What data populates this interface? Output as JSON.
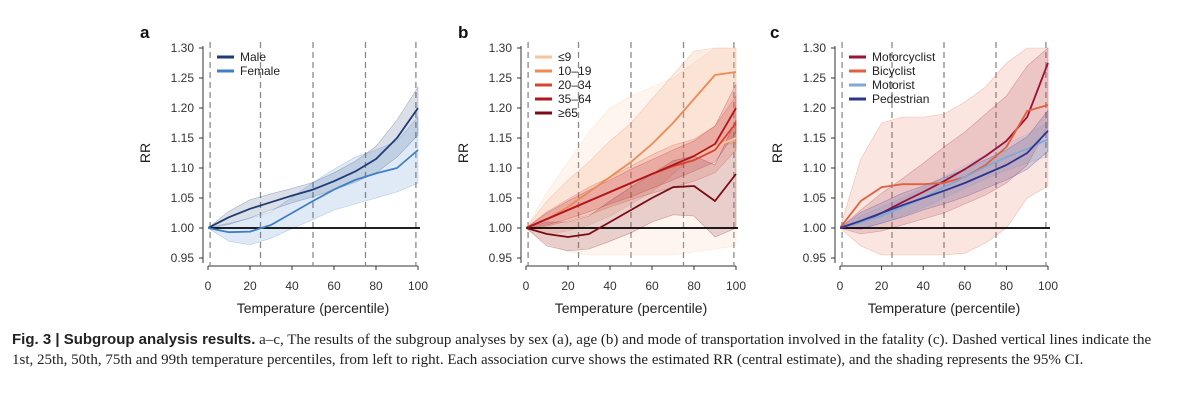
{
  "chart_data": [
    {
      "panel": "a",
      "type": "line",
      "xlabel": "Temperature (percentile)",
      "ylabel": "RR",
      "xlim": [
        0,
        100
      ],
      "ylim": [
        0.95,
        1.3
      ],
      "xticks": [
        "0",
        "20",
        "40",
        "60",
        "80",
        "100"
      ],
      "yticks": [
        "0.95",
        "1.00",
        "1.05",
        "1.10",
        "1.15",
        "1.20",
        "1.25",
        "1.30"
      ],
      "vlines": [
        1,
        25,
        50,
        75,
        99
      ],
      "legend_position": "top-left",
      "series": [
        {
          "name": "Male",
          "color": "#1f3b73",
          "x": [
            0,
            10,
            20,
            30,
            40,
            50,
            60,
            70,
            80,
            90,
            100
          ],
          "y": [
            1.0,
            1.018,
            1.032,
            1.043,
            1.054,
            1.064,
            1.078,
            1.094,
            1.115,
            1.15,
            1.2
          ],
          "lower": [
            1.0,
            1.006,
            1.017,
            1.03,
            1.042,
            1.052,
            1.064,
            1.076,
            1.092,
            1.118,
            1.155
          ],
          "upper": [
            1.0,
            1.028,
            1.047,
            1.057,
            1.066,
            1.076,
            1.092,
            1.111,
            1.136,
            1.18,
            1.235
          ]
        },
        {
          "name": "Female",
          "color": "#3f7fc4",
          "x": [
            0,
            10,
            20,
            30,
            40,
            50,
            60,
            70,
            80,
            90,
            100
          ],
          "y": [
            1.0,
            0.993,
            0.994,
            1.005,
            1.025,
            1.045,
            1.064,
            1.08,
            1.091,
            1.1,
            1.13
          ],
          "lower": [
            1.0,
            0.978,
            0.972,
            0.983,
            0.999,
            1.014,
            1.03,
            1.04,
            1.05,
            1.06,
            1.075
          ],
          "upper": [
            1.0,
            1.008,
            1.016,
            1.027,
            1.051,
            1.076,
            1.098,
            1.118,
            1.13,
            1.145,
            1.185
          ]
        }
      ]
    },
    {
      "panel": "b",
      "type": "line",
      "xlabel": "Temperature (percentile)",
      "ylabel": "RR",
      "xlim": [
        0,
        100
      ],
      "ylim": [
        0.95,
        1.3
      ],
      "xticks": [
        "0",
        "20",
        "40",
        "60",
        "80",
        "100"
      ],
      "yticks": [
        "0.95",
        "1.00",
        "1.05",
        "1.10",
        "1.15",
        "1.20",
        "1.25",
        "1.30"
      ],
      "vlines": [
        1,
        25,
        50,
        75,
        99
      ],
      "legend_position": "top-left",
      "series": [
        {
          "name": "≤9",
          "color": "#f6c39a",
          "x": [
            0,
            10,
            20,
            30,
            40,
            50,
            60,
            70,
            80,
            90,
            100
          ],
          "y": [
            1.0,
            1.015,
            1.03,
            1.045,
            1.06,
            1.075,
            1.09,
            1.105,
            1.12,
            1.135,
            1.15
          ],
          "lower": [
            1.0,
            0.975,
            0.96,
            0.955,
            0.955,
            0.955,
            0.955,
            0.955,
            0.96,
            0.965,
            0.97
          ],
          "upper": [
            1.0,
            1.06,
            1.11,
            1.16,
            1.2,
            1.22,
            1.235,
            1.25,
            1.275,
            1.3,
            1.3
          ]
        },
        {
          "name": "10–19",
          "color": "#ee8a55",
          "x": [
            0,
            10,
            20,
            30,
            40,
            50,
            60,
            70,
            80,
            90,
            100
          ],
          "y": [
            1.0,
            1.015,
            1.035,
            1.06,
            1.085,
            1.11,
            1.14,
            1.175,
            1.215,
            1.255,
            1.26
          ],
          "lower": [
            1.0,
            0.99,
            0.995,
            1.005,
            1.02,
            1.04,
            1.06,
            1.09,
            1.12,
            1.14,
            1.14
          ],
          "upper": [
            1.0,
            1.045,
            1.08,
            1.11,
            1.145,
            1.175,
            1.215,
            1.255,
            1.295,
            1.3,
            1.3
          ]
        },
        {
          "name": "20–34",
          "color": "#d9432f",
          "x": [
            0,
            10,
            20,
            30,
            40,
            50,
            60,
            70,
            80,
            90,
            100
          ],
          "y": [
            1.0,
            1.015,
            1.03,
            1.045,
            1.06,
            1.075,
            1.09,
            1.103,
            1.113,
            1.13,
            1.175
          ],
          "lower": [
            1.0,
            1.003,
            1.012,
            1.022,
            1.035,
            1.047,
            1.058,
            1.068,
            1.078,
            1.092,
            1.13
          ],
          "upper": [
            1.0,
            1.027,
            1.048,
            1.068,
            1.085,
            1.103,
            1.122,
            1.138,
            1.148,
            1.17,
            1.22
          ]
        },
        {
          "name": "35–64",
          "color": "#b3151f",
          "x": [
            0,
            10,
            20,
            30,
            40,
            50,
            60,
            70,
            80,
            90,
            100
          ],
          "y": [
            1.0,
            1.015,
            1.03,
            1.045,
            1.06,
            1.075,
            1.09,
            1.105,
            1.12,
            1.14,
            1.2
          ],
          "lower": [
            1.0,
            1.005,
            1.015,
            1.027,
            1.04,
            1.052,
            1.066,
            1.08,
            1.095,
            1.11,
            1.16
          ],
          "upper": [
            1.0,
            1.025,
            1.045,
            1.063,
            1.08,
            1.098,
            1.114,
            1.13,
            1.145,
            1.17,
            1.24
          ]
        },
        {
          "name": "≥65",
          "color": "#7c0a14",
          "x": [
            0,
            10,
            20,
            30,
            40,
            50,
            60,
            70,
            80,
            90,
            100
          ],
          "y": [
            1.0,
            0.99,
            0.985,
            0.99,
            1.01,
            1.03,
            1.05,
            1.068,
            1.07,
            1.045,
            1.09
          ],
          "lower": [
            1.0,
            0.97,
            0.962,
            0.965,
            0.978,
            0.992,
            1.01,
            1.022,
            1.02,
            0.985,
            1.0
          ],
          "upper": [
            1.0,
            1.01,
            1.01,
            1.02,
            1.045,
            1.068,
            1.09,
            1.112,
            1.12,
            1.105,
            1.18
          ]
        }
      ]
    },
    {
      "panel": "c",
      "type": "line",
      "xlabel": "Temperature (percentile)",
      "ylabel": "RR",
      "xlim": [
        0,
        100
      ],
      "ylim": [
        0.95,
        1.3
      ],
      "xticks": [
        "0",
        "20",
        "40",
        "60",
        "80",
        "100"
      ],
      "yticks": [
        "0.95",
        "1.00",
        "1.05",
        "1.10",
        "1.15",
        "1.20",
        "1.25",
        "1.30"
      ],
      "vlines": [
        1,
        25,
        50,
        75,
        99
      ],
      "legend_position": "top-left",
      "series": [
        {
          "name": "Motorcyclist",
          "color": "#9c1238",
          "x": [
            0,
            10,
            20,
            30,
            40,
            50,
            60,
            70,
            80,
            90,
            100
          ],
          "y": [
            1.0,
            1.01,
            1.025,
            1.043,
            1.06,
            1.078,
            1.098,
            1.12,
            1.145,
            1.185,
            1.275
          ],
          "lower": [
            1.0,
            0.99,
            0.995,
            1.005,
            1.015,
            1.025,
            1.04,
            1.055,
            1.075,
            1.105,
            1.17
          ],
          "upper": [
            1.0,
            1.03,
            1.058,
            1.082,
            1.108,
            1.135,
            1.16,
            1.19,
            1.22,
            1.27,
            1.3
          ]
        },
        {
          "name": "Bicyclist",
          "color": "#e2603d",
          "x": [
            0,
            10,
            20,
            30,
            40,
            50,
            60,
            70,
            80,
            90,
            100
          ],
          "y": [
            1.0,
            1.045,
            1.068,
            1.073,
            1.073,
            1.075,
            1.085,
            1.105,
            1.135,
            1.195,
            1.205
          ],
          "lower": [
            1.0,
            0.97,
            0.955,
            0.955,
            0.955,
            0.955,
            0.958,
            0.975,
            1.0,
            1.05,
            1.07
          ],
          "upper": [
            1.0,
            1.115,
            1.175,
            1.185,
            1.185,
            1.19,
            1.21,
            1.235,
            1.275,
            1.3,
            1.3
          ]
        },
        {
          "name": "Motorist",
          "color": "#7fa9d6",
          "x": [
            0,
            10,
            20,
            30,
            40,
            50,
            60,
            70,
            80,
            90,
            100
          ],
          "y": [
            1.0,
            1.01,
            1.02,
            1.035,
            1.05,
            1.068,
            1.085,
            1.102,
            1.118,
            1.132,
            1.148
          ],
          "lower": [
            1.0,
            1.0,
            1.008,
            1.02,
            1.034,
            1.05,
            1.066,
            1.082,
            1.096,
            1.108,
            1.12
          ],
          "upper": [
            1.0,
            1.02,
            1.035,
            1.05,
            1.066,
            1.086,
            1.104,
            1.122,
            1.14,
            1.156,
            1.176
          ]
        },
        {
          "name": "Pedestrian",
          "color": "#2e3590",
          "x": [
            0,
            10,
            20,
            30,
            40,
            50,
            60,
            70,
            80,
            90,
            100
          ],
          "y": [
            1.0,
            1.012,
            1.025,
            1.038,
            1.05,
            1.062,
            1.075,
            1.09,
            1.105,
            1.125,
            1.162
          ],
          "lower": [
            1.0,
            0.998,
            1.008,
            1.018,
            1.03,
            1.04,
            1.052,
            1.066,
            1.08,
            1.098,
            1.128
          ],
          "upper": [
            1.0,
            1.026,
            1.042,
            1.058,
            1.07,
            1.084,
            1.098,
            1.114,
            1.13,
            1.152,
            1.196
          ]
        }
      ]
    }
  ],
  "caption": {
    "head": "Fig. 3 | Subgroup analysis results.",
    "body": " a–c, The results of the subgroup analyses by sex (a), age (b) and mode of transportation involved in the fatality (c). Dashed vertical lines indicate the 1st, 25th, 50th, 75th and 99th temperature percentiles, from left to right. Each association curve shows the estimated RR (central estimate), and the shading represents the 95% CI."
  }
}
